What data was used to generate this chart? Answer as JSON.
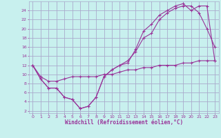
{
  "xlabel": "Windchill (Refroidissement éolien,°C)",
  "bg_color": "#c8f0ee",
  "grid_color": "#aaaacc",
  "line_color": "#993399",
  "xlim": [
    -0.5,
    23.5
  ],
  "ylim": [
    1.5,
    26
  ],
  "xticks": [
    0,
    1,
    2,
    3,
    4,
    5,
    6,
    7,
    8,
    9,
    10,
    11,
    12,
    13,
    14,
    15,
    16,
    17,
    18,
    19,
    20,
    21,
    22,
    23
  ],
  "yticks": [
    2,
    4,
    6,
    8,
    10,
    12,
    14,
    16,
    18,
    20,
    22,
    24
  ],
  "line1_x": [
    0,
    1,
    2,
    3,
    4,
    5,
    6,
    7,
    8,
    9,
    10,
    11,
    12,
    13,
    14,
    15,
    16,
    17,
    18,
    19,
    20,
    21,
    22,
    23
  ],
  "line1_y": [
    12,
    9,
    7,
    7,
    5,
    4.5,
    2.5,
    3,
    5,
    9.5,
    11,
    12,
    13,
    15,
    18,
    19,
    22,
    23.5,
    24.5,
    25,
    25,
    23.5,
    20,
    16
  ],
  "line2_x": [
    0,
    1,
    2,
    3,
    4,
    5,
    6,
    7,
    8,
    9,
    10,
    11,
    12,
    13,
    14,
    15,
    16,
    17,
    18,
    19,
    20,
    21,
    22,
    23
  ],
  "line2_y": [
    12,
    9,
    7,
    7,
    5,
    4.5,
    2.5,
    3,
    5,
    9.5,
    11,
    12,
    12.5,
    15.5,
    19.5,
    21,
    23,
    24,
    25,
    25.5,
    24,
    25,
    25,
    13
  ],
  "line3_x": [
    0,
    1,
    2,
    3,
    4,
    5,
    6,
    7,
    8,
    9,
    10,
    11,
    12,
    13,
    14,
    15,
    16,
    17,
    18,
    19,
    20,
    21,
    22,
    23
  ],
  "line3_y": [
    12,
    9.5,
    8.5,
    8.5,
    9,
    9.5,
    9.5,
    9.5,
    9.5,
    10,
    10,
    10.5,
    11,
    11,
    11.5,
    11.5,
    12,
    12,
    12,
    12.5,
    12.5,
    13,
    13,
    13
  ]
}
